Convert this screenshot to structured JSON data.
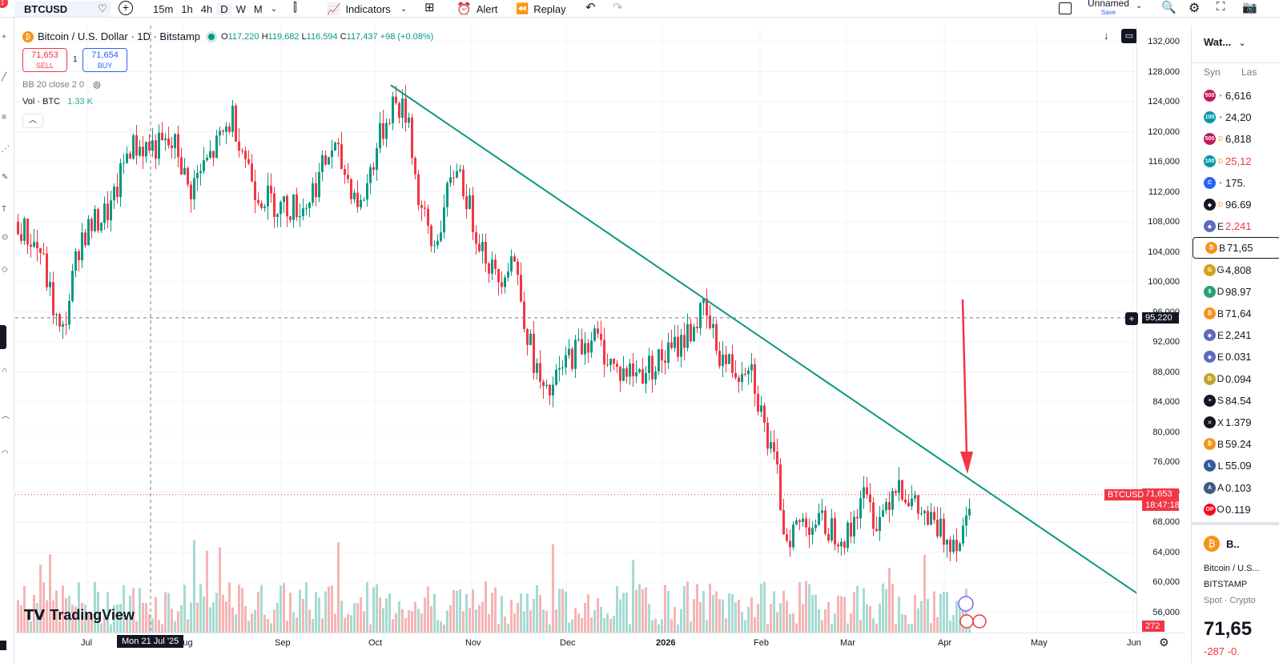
{
  "toolbar": {
    "symbol": "BTCUSD",
    "notif_count": "1",
    "timeframes": [
      "15m",
      "1h",
      "4h",
      "D",
      "W",
      "M"
    ],
    "active_timeframe": "D",
    "indicators_label": "Indicators",
    "alert_label": "Alert",
    "replay_label": "Replay",
    "layout_name": "Unnamed",
    "save_label": "Save"
  },
  "legend": {
    "title": "Bitcoin / U.S. Dollar · 1D · Bitstamp",
    "open_label": "O",
    "open": "117,220",
    "high_label": "H",
    "high": "119,682",
    "low_label": "L",
    "low": "116,594",
    "close_label": "C",
    "close": "117,437",
    "change": "+98 (+0.08%)"
  },
  "trade": {
    "sell_price": "71,653",
    "sell_label": "SELL",
    "spread": "1",
    "buy_price": "71,654",
    "buy_label": "BUY"
  },
  "studies": {
    "bb": "BB 20 close 2 0",
    "vol_label": "Vol · BTC",
    "vol_value": "1.33 K"
  },
  "price_axis": {
    "labels": [
      "132,000",
      "128,000",
      "124,000",
      "120,000",
      "116,000",
      "112,000",
      "108,000",
      "104,000",
      "100,000",
      "96,000",
      "92,000",
      "88,000",
      "84,000",
      "80,000",
      "76,000",
      "72,000",
      "68,000",
      "64,000",
      "60,000",
      "56,000"
    ],
    "crosshair_price": "95,220",
    "last_symbol": "BTCUSD",
    "last_price": "71,653",
    "countdown": "18:47:18",
    "volume_tag": "272"
  },
  "time_axis": {
    "labels": [
      "Jul",
      "Aug",
      "Sep",
      "Oct",
      "Nov",
      "Dec",
      "2026",
      "Feb",
      "Mar",
      "Apr",
      "May",
      "Jun"
    ],
    "crosshair_date": "Mon 21 Jul '25"
  },
  "branding": {
    "logo_text": "TradingView"
  },
  "watchlist": {
    "title": "Wat...",
    "col_symbol": "Syn",
    "col_last": "Las",
    "rows": [
      {
        "icon": "500",
        "color": "#c2185b",
        "mark": "•",
        "sym": "",
        "val": "6,616",
        "val_color": "#131722"
      },
      {
        "icon": "100",
        "color": "#0097a7",
        "mark": "•",
        "sym": "",
        "val": "24,20",
        "val_color": "#131722"
      },
      {
        "icon": "500",
        "color": "#c2185b",
        "mark": "D",
        "sym": "",
        "val": "6,818",
        "val_color": "#131722"
      },
      {
        "icon": "100",
        "color": "#0097a7",
        "mark": "D",
        "sym": "",
        "val": "25,12",
        "val_color": "#f23645"
      },
      {
        "icon": "C",
        "color": "#2962ff",
        "mark": "•",
        "sym": "",
        "val": "175.",
        "val_color": "#131722"
      },
      {
        "icon": "◆",
        "color": "#131722",
        "mark": "D",
        "sym": "",
        "val": "96.69",
        "val_color": "#131722"
      },
      {
        "icon": "◆",
        "color": "#5c6bc0",
        "mark": "",
        "sym": "E",
        "val": "2,241",
        "val_color": "#f23645"
      },
      {
        "icon": "₿",
        "color": "#f7931a",
        "mark": "",
        "sym": "B",
        "val": "71,65",
        "val_color": "#131722"
      },
      {
        "icon": "G",
        "color": "#d4a017",
        "mark": "",
        "sym": "G",
        "val": "4,808",
        "val_color": "#131722"
      },
      {
        "icon": "$",
        "color": "#26a17b",
        "mark": "",
        "sym": "D",
        "val": "98.97",
        "val_color": "#131722"
      },
      {
        "icon": "₿",
        "color": "#f7931a",
        "mark": "",
        "sym": "B",
        "val": "71,64",
        "val_color": "#131722"
      },
      {
        "icon": "◆",
        "color": "#5c6bc0",
        "mark": "",
        "sym": "E",
        "val": "2,241",
        "val_color": "#131722"
      },
      {
        "icon": "◆",
        "color": "#5c6bc0",
        "mark": "",
        "sym": "E",
        "val": "0.031",
        "val_color": "#131722"
      },
      {
        "icon": "D",
        "color": "#c2a633",
        "mark": "",
        "sym": "D",
        "val": "0.094",
        "val_color": "#131722"
      },
      {
        "icon": "≡",
        "color": "#131722",
        "mark": "",
        "sym": "S",
        "val": "84.54",
        "val_color": "#131722"
      },
      {
        "icon": "✕",
        "color": "#131722",
        "mark": "",
        "sym": "X",
        "val": "1.379",
        "val_color": "#131722"
      },
      {
        "icon": "₿",
        "color": "#f7931a",
        "mark": "",
        "sym": "B",
        "val": "59.24",
        "val_color": "#131722"
      },
      {
        "icon": "Ł",
        "color": "#345d9d",
        "mark": "",
        "sym": "L",
        "val": "55.09",
        "val_color": "#131722"
      },
      {
        "icon": "A",
        "color": "#3d5a80",
        "mark": "",
        "sym": "A",
        "val": "0.103",
        "val_color": "#131722"
      },
      {
        "icon": "OP",
        "color": "#ff0420",
        "mark": "",
        "sym": "O",
        "val": "0.119",
        "val_color": "#131722"
      }
    ],
    "detail": {
      "short": "B..",
      "name": "Bitcoin / U.S...",
      "exchange": "BITSTAMP",
      "type": "Spot · Crypto",
      "price": "71,65",
      "change": "-287 -0."
    }
  },
  "chart_data": {
    "type": "candlestick",
    "x_ticks": [
      "Jul",
      "Aug",
      "Sep",
      "Oct",
      "Nov",
      "Dec",
      "2026",
      "Feb",
      "Mar",
      "Apr",
      "May",
      "Jun"
    ],
    "ylim": [
      54000,
      134000
    ],
    "last_price": 71653,
    "trendline": {
      "from": [
        "2025-10-06",
        126200
      ],
      "to": [
        "2026-05-31",
        58200
      ]
    },
    "crosshair": {
      "date": "2025-07-21",
      "price": 95220
    },
    "annotation": "red arrow pointing down to trendline near current price",
    "volume_max": 272
  }
}
